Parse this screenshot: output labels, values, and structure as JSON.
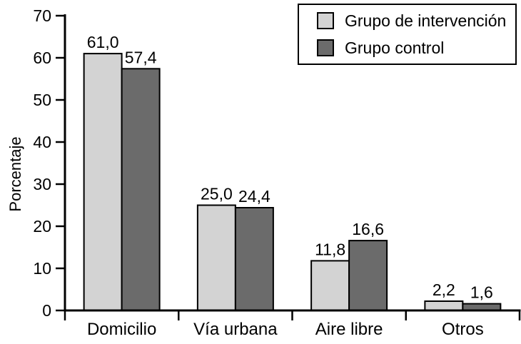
{
  "figure": {
    "background": "#ffffff",
    "axis_color": "#000000"
  },
  "chart_data": {
    "type": "bar",
    "title": "",
    "categories": [
      "Domicilio",
      "Vía urbana",
      "Aire libre",
      "Otros"
    ],
    "series": [
      {
        "name": "Grupo de intervención",
        "color": "#d3d3d3",
        "values": [
          61.0,
          25.0,
          11.8,
          2.2
        ],
        "value_labels": [
          "61,0",
          "25,0",
          "11,8",
          "2,2"
        ]
      },
      {
        "name": "Grupo control",
        "color": "#6b6b6b",
        "values": [
          57.4,
          24.4,
          16.6,
          1.6
        ],
        "value_labels": [
          "57,4",
          "24,4",
          "16,6",
          "1,6"
        ]
      }
    ],
    "xlabel": "",
    "ylabel": "Porcentaje",
    "ylim": [
      0,
      70
    ],
    "yticks": [
      0,
      10,
      20,
      30,
      40,
      50,
      60,
      70
    ],
    "grid": false,
    "legend_position": "top-right",
    "decimal_separator": ","
  }
}
